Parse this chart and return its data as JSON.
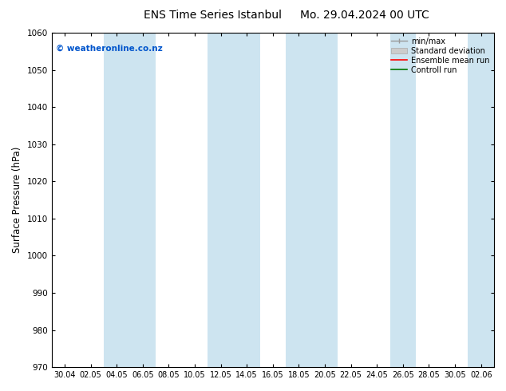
{
  "title_left": "ENS Time Series Istanbul",
  "title_right": "Mo. 29.04.2024 00 UTC",
  "ylabel": "Surface Pressure (hPa)",
  "ylim": [
    970,
    1060
  ],
  "yticks": [
    970,
    980,
    990,
    1000,
    1010,
    1020,
    1030,
    1040,
    1050,
    1060
  ],
  "xtick_labels": [
    "30.04",
    "02.05",
    "04.05",
    "06.05",
    "08.05",
    "10.05",
    "12.05",
    "14.05",
    "16.05",
    "18.05",
    "20.05",
    "22.05",
    "24.05",
    "26.05",
    "28.05",
    "30.05",
    "02.06"
  ],
  "copyright": "© weatheronline.co.nz",
  "copyright_color": "#0055cc",
  "band_color": "#cde4f0",
  "band_alpha": 1.0,
  "background_color": "#ffffff",
  "legend_entries": [
    "min/max",
    "Standard deviation",
    "Ensemble mean run",
    "Controll run"
  ],
  "legend_colors": [
    "#999999",
    "#bbbbbb",
    "#ff0000",
    "#007700"
  ],
  "figsize": [
    6.34,
    4.9
  ],
  "dpi": 100,
  "band_indices": [
    2,
    3,
    6,
    7,
    9,
    10,
    13,
    16
  ]
}
